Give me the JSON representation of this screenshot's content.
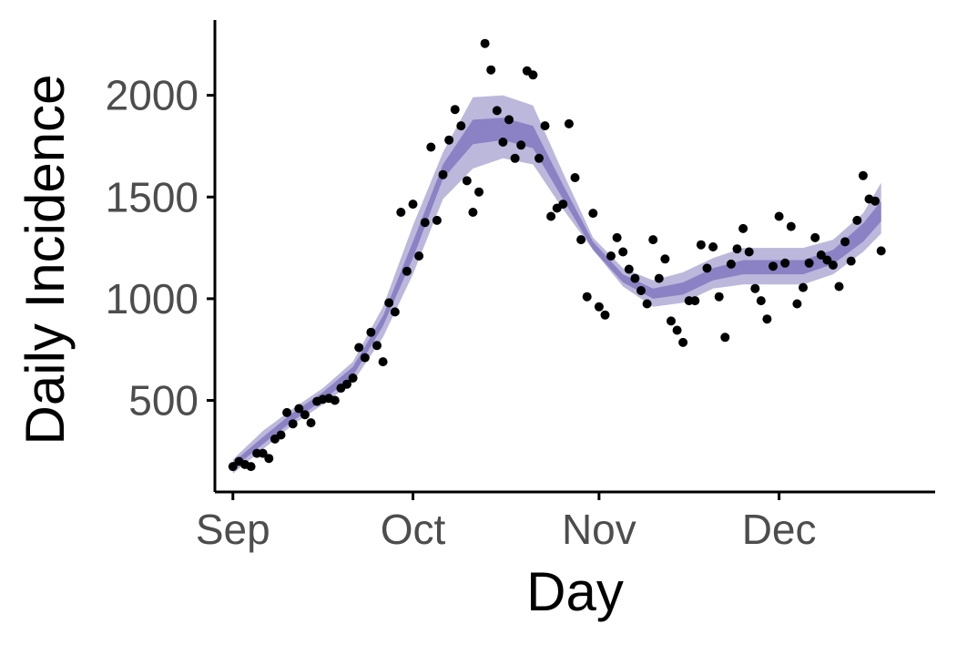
{
  "chart_data": {
    "type": "line",
    "title": "",
    "xlabel": "Day",
    "ylabel": "Daily Incidence",
    "x_range": [
      "2020-08-29",
      "2020-12-27"
    ],
    "ylim": [
      50,
      2370
    ],
    "x_ticks": [
      {
        "label": "Sep",
        "date": "2020-09-01"
      },
      {
        "label": "Oct",
        "date": "2020-10-01"
      },
      {
        "label": "Nov",
        "date": "2020-11-01"
      },
      {
        "label": "Dec",
        "date": "2020-12-01"
      }
    ],
    "y_ticks": [
      500,
      1000,
      1500,
      2000
    ],
    "grid": false,
    "legend": "none",
    "colors": {
      "outer_band": "#bcb8dc",
      "inner_band": "#8a82c4",
      "points": "#000000",
      "axis": "#000000",
      "tick_label": "#4d4d4d"
    },
    "series": [
      {
        "type": "band",
        "x": [
          "2020-09-01",
          "2020-09-06",
          "2020-09-11",
          "2020-09-16",
          "2020-09-21",
          "2020-09-26",
          "2020-10-01",
          "2020-10-06",
          "2020-10-11",
          "2020-10-16",
          "2020-10-21",
          "2020-10-26",
          "2020-10-31",
          "2020-11-05",
          "2020-11-10",
          "2020-11-15",
          "2020-11-20",
          "2020-11-25",
          "2020-11-30",
          "2020-12-05",
          "2020-12-10",
          "2020-12-15",
          "2020-12-18"
        ],
        "lower": [
          140,
          260,
          380,
          480,
          590,
          810,
          1120,
          1490,
          1640,
          1690,
          1660,
          1440,
          1240,
          1060,
          960,
          980,
          1050,
          1070,
          1070,
          1070,
          1120,
          1230,
          1320
        ],
        "upper": [
          210,
          350,
          460,
          560,
          690,
          960,
          1360,
          1720,
          1990,
          2000,
          1950,
          1620,
          1300,
          1150,
          1090,
          1130,
          1200,
          1250,
          1250,
          1250,
          1290,
          1420,
          1570
        ]
      },
      {
        "type": "band",
        "x": [
          "2020-09-01",
          "2020-09-06",
          "2020-09-11",
          "2020-09-16",
          "2020-09-21",
          "2020-09-26",
          "2020-10-01",
          "2020-10-06",
          "2020-10-11",
          "2020-10-16",
          "2020-10-21",
          "2020-10-26",
          "2020-10-31",
          "2020-11-05",
          "2020-11-10",
          "2020-11-15",
          "2020-11-20",
          "2020-11-25",
          "2020-11-30",
          "2020-12-05",
          "2020-12-10",
          "2020-12-15",
          "2020-12-18"
        ],
        "lower": [
          165,
          285,
          400,
          500,
          620,
          865,
          1200,
          1590,
          1760,
          1780,
          1740,
          1490,
          1240,
          1080,
          1000,
          1020,
          1090,
          1120,
          1120,
          1120,
          1170,
          1280,
          1380
        ],
        "upper": [
          195,
          320,
          440,
          540,
          665,
          915,
          1280,
          1660,
          1880,
          1890,
          1850,
          1560,
          1280,
          1120,
          1050,
          1080,
          1150,
          1190,
          1190,
          1190,
          1240,
          1370,
          1480
        ]
      }
    ],
    "points": [
      {
        "x": "2020-09-01",
        "y": 175
      },
      {
        "x": "2020-09-02",
        "y": 200
      },
      {
        "x": "2020-09-03",
        "y": 185
      },
      {
        "x": "2020-09-04",
        "y": 175
      },
      {
        "x": "2020-09-05",
        "y": 240
      },
      {
        "x": "2020-09-06",
        "y": 240
      },
      {
        "x": "2020-09-07",
        "y": 215
      },
      {
        "x": "2020-09-08",
        "y": 310
      },
      {
        "x": "2020-09-09",
        "y": 330
      },
      {
        "x": "2020-09-10",
        "y": 440
      },
      {
        "x": "2020-09-11",
        "y": 385
      },
      {
        "x": "2020-09-12",
        "y": 460
      },
      {
        "x": "2020-09-13",
        "y": 430
      },
      {
        "x": "2020-09-14",
        "y": 390
      },
      {
        "x": "2020-09-15",
        "y": 495
      },
      {
        "x": "2020-09-16",
        "y": 505
      },
      {
        "x": "2020-09-17",
        "y": 510
      },
      {
        "x": "2020-09-18",
        "y": 500
      },
      {
        "x": "2020-09-19",
        "y": 560
      },
      {
        "x": "2020-09-20",
        "y": 580
      },
      {
        "x": "2020-09-21",
        "y": 610
      },
      {
        "x": "2020-09-22",
        "y": 760
      },
      {
        "x": "2020-09-23",
        "y": 710
      },
      {
        "x": "2020-09-24",
        "y": 835
      },
      {
        "x": "2020-09-25",
        "y": 770
      },
      {
        "x": "2020-09-26",
        "y": 690
      },
      {
        "x": "2020-09-27",
        "y": 980
      },
      {
        "x": "2020-09-28",
        "y": 935
      },
      {
        "x": "2020-09-29",
        "y": 1425
      },
      {
        "x": "2020-09-30",
        "y": 1135
      },
      {
        "x": "2020-10-01",
        "y": 1465
      },
      {
        "x": "2020-10-02",
        "y": 1210
      },
      {
        "x": "2020-10-03",
        "y": 1375
      },
      {
        "x": "2020-10-04",
        "y": 1745
      },
      {
        "x": "2020-10-05",
        "y": 1385
      },
      {
        "x": "2020-10-06",
        "y": 1610
      },
      {
        "x": "2020-10-07",
        "y": 1780
      },
      {
        "x": "2020-10-08",
        "y": 1930
      },
      {
        "x": "2020-10-09",
        "y": 1850
      },
      {
        "x": "2020-10-10",
        "y": 1580
      },
      {
        "x": "2020-10-11",
        "y": 1425
      },
      {
        "x": "2020-10-12",
        "y": 1525
      },
      {
        "x": "2020-10-13",
        "y": 2255
      },
      {
        "x": "2020-10-14",
        "y": 2125
      },
      {
        "x": "2020-10-15",
        "y": 1925
      },
      {
        "x": "2020-10-16",
        "y": 1770
      },
      {
        "x": "2020-10-17",
        "y": 1880
      },
      {
        "x": "2020-10-18",
        "y": 1690
      },
      {
        "x": "2020-10-19",
        "y": 1755
      },
      {
        "x": "2020-10-20",
        "y": 2120
      },
      {
        "x": "2020-10-21",
        "y": 2100
      },
      {
        "x": "2020-10-22",
        "y": 1690
      },
      {
        "x": "2020-10-23",
        "y": 1850
      },
      {
        "x": "2020-10-24",
        "y": 1405
      },
      {
        "x": "2020-10-25",
        "y": 1445
      },
      {
        "x": "2020-10-26",
        "y": 1465
      },
      {
        "x": "2020-10-27",
        "y": 1860
      },
      {
        "x": "2020-10-28",
        "y": 1595
      },
      {
        "x": "2020-10-29",
        "y": 1290
      },
      {
        "x": "2020-10-30",
        "y": 1010
      },
      {
        "x": "2020-10-31",
        "y": 1420
      },
      {
        "x": "2020-11-01",
        "y": 960
      },
      {
        "x": "2020-11-02",
        "y": 920
      },
      {
        "x": "2020-11-03",
        "y": 1210
      },
      {
        "x": "2020-11-04",
        "y": 1300
      },
      {
        "x": "2020-11-05",
        "y": 1230
      },
      {
        "x": "2020-11-06",
        "y": 1145
      },
      {
        "x": "2020-11-07",
        "y": 1100
      },
      {
        "x": "2020-11-08",
        "y": 1040
      },
      {
        "x": "2020-11-09",
        "y": 975
      },
      {
        "x": "2020-11-10",
        "y": 1290
      },
      {
        "x": "2020-11-11",
        "y": 1100
      },
      {
        "x": "2020-11-12",
        "y": 1195
      },
      {
        "x": "2020-11-13",
        "y": 890
      },
      {
        "x": "2020-11-14",
        "y": 845
      },
      {
        "x": "2020-11-15",
        "y": 785
      },
      {
        "x": "2020-11-16",
        "y": 990
      },
      {
        "x": "2020-11-17",
        "y": 990
      },
      {
        "x": "2020-11-18",
        "y": 1265
      },
      {
        "x": "2020-11-19",
        "y": 1150
      },
      {
        "x": "2020-11-20",
        "y": 1255
      },
      {
        "x": "2020-11-21",
        "y": 1010
      },
      {
        "x": "2020-11-22",
        "y": 810
      },
      {
        "x": "2020-11-23",
        "y": 1170
      },
      {
        "x": "2020-11-24",
        "y": 1245
      },
      {
        "x": "2020-11-25",
        "y": 1345
      },
      {
        "x": "2020-11-26",
        "y": 1230
      },
      {
        "x": "2020-11-27",
        "y": 1050
      },
      {
        "x": "2020-11-28",
        "y": 990
      },
      {
        "x": "2020-11-29",
        "y": 900
      },
      {
        "x": "2020-11-30",
        "y": 1160
      },
      {
        "x": "2020-12-01",
        "y": 1405
      },
      {
        "x": "2020-12-02",
        "y": 1175
      },
      {
        "x": "2020-12-03",
        "y": 1355
      },
      {
        "x": "2020-12-04",
        "y": 975
      },
      {
        "x": "2020-12-05",
        "y": 1055
      },
      {
        "x": "2020-12-06",
        "y": 1175
      },
      {
        "x": "2020-12-07",
        "y": 1300
      },
      {
        "x": "2020-12-08",
        "y": 1215
      },
      {
        "x": "2020-12-09",
        "y": 1190
      },
      {
        "x": "2020-12-10",
        "y": 1165
      },
      {
        "x": "2020-12-11",
        "y": 1060
      },
      {
        "x": "2020-12-12",
        "y": 1280
      },
      {
        "x": "2020-12-13",
        "y": 1185
      },
      {
        "x": "2020-12-14",
        "y": 1385
      },
      {
        "x": "2020-12-15",
        "y": 1605
      },
      {
        "x": "2020-12-16",
        "y": 1490
      },
      {
        "x": "2020-12-17",
        "y": 1480
      },
      {
        "x": "2020-12-18",
        "y": 1235
      }
    ]
  }
}
